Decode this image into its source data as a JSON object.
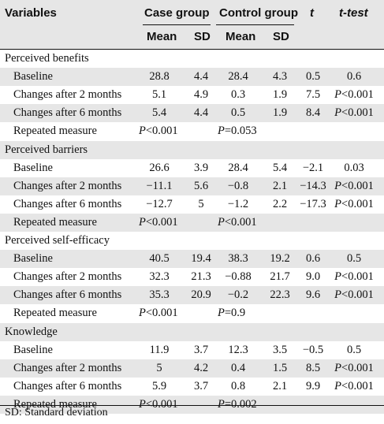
{
  "header": {
    "variables": "Variables",
    "case_group": "Case group",
    "control_group": "Control group",
    "t": "t",
    "ttest": "t-test",
    "mean": "Mean",
    "sd": "SD"
  },
  "rows": [
    {
      "label": "Perceived benefits",
      "type": "section"
    },
    {
      "label": "Baseline",
      "type": "data",
      "case_mean": "28.8",
      "case_sd": "4.4",
      "ctrl_mean": "28.4",
      "ctrl_sd": "4.3",
      "t": "0.5",
      "ttest": "0.6"
    },
    {
      "label": "Changes after 2 months",
      "type": "data",
      "case_mean": "5.1",
      "case_sd": "4.9",
      "ctrl_mean": "0.3",
      "ctrl_sd": "1.9",
      "t": "7.5",
      "ttest": "P<0.001"
    },
    {
      "label": "Changes after 6 months",
      "type": "data",
      "case_mean": "5.4",
      "case_sd": "4.4",
      "ctrl_mean": "0.5",
      "ctrl_sd": "1.9",
      "t": "8.4",
      "ttest": "P<0.001"
    },
    {
      "label": "Repeated measure",
      "type": "rm",
      "case_p": "P<0.001",
      "ctrl_p": "P=0.053"
    },
    {
      "label": "Perceived barriers",
      "type": "section"
    },
    {
      "label": "Baseline",
      "type": "data",
      "case_mean": "26.6",
      "case_sd": "3.9",
      "ctrl_mean": "28.4",
      "ctrl_sd": "5.4",
      "t": "−2.1",
      "ttest": "0.03"
    },
    {
      "label": "Changes after 2 months",
      "type": "data",
      "case_mean": "−11.1",
      "case_sd": "5.6",
      "ctrl_mean": "−0.8",
      "ctrl_sd": "2.1",
      "t": "−14.3",
      "ttest": "P<0.001"
    },
    {
      "label": "Changes after 6 months",
      "type": "data",
      "case_mean": "−12.7",
      "case_sd": "5",
      "ctrl_mean": "−1.2",
      "ctrl_sd": "2.2",
      "t": "−17.3",
      "ttest": "P<0.001"
    },
    {
      "label": "Repeated measure",
      "type": "rm",
      "case_p": "P<0.001",
      "ctrl_p": "P<0.001"
    },
    {
      "label": "Perceived self-efficacy",
      "type": "section"
    },
    {
      "label": "Baseline",
      "type": "data",
      "case_mean": "40.5",
      "case_sd": "19.4",
      "ctrl_mean": "38.3",
      "ctrl_sd": "19.2",
      "t": "0.6",
      "ttest": "0.5"
    },
    {
      "label": "Changes after 2 months",
      "type": "data",
      "case_mean": "32.3",
      "case_sd": "21.3",
      "ctrl_mean": "−0.88",
      "ctrl_sd": "21.7",
      "t": "9.0",
      "ttest": "P<0.001"
    },
    {
      "label": "Changes after 6 months",
      "type": "data",
      "case_mean": "35.3",
      "case_sd": "20.9",
      "ctrl_mean": "−0.2",
      "ctrl_sd": "22.3",
      "t": "9.6",
      "ttest": "P<0.001"
    },
    {
      "label": "Repeated measure",
      "type": "rm",
      "case_p": "P<0.001",
      "ctrl_p": "P=0.9"
    },
    {
      "label": "Knowledge",
      "type": "section"
    },
    {
      "label": "Baseline",
      "type": "data",
      "case_mean": "11.9",
      "case_sd": "3.7",
      "ctrl_mean": "12.3",
      "ctrl_sd": "3.5",
      "t": "−0.5",
      "ttest": "0.5"
    },
    {
      "label": "Changes after 2 months",
      "type": "data",
      "case_mean": "5",
      "case_sd": "4.2",
      "ctrl_mean": "0.4",
      "ctrl_sd": "1.5",
      "t": "8.5",
      "ttest": "P<0.001"
    },
    {
      "label": "Changes after 6 months",
      "type": "data",
      "case_mean": "5.9",
      "case_sd": "3.7",
      "ctrl_mean": "0.8",
      "ctrl_sd": "2.1",
      "t": "9.9",
      "ttest": "P<0.001"
    },
    {
      "label": "Repeated measure",
      "type": "rm",
      "case_p": "P<0.001",
      "ctrl_p": "P=0.002"
    }
  ],
  "footnote": "SD: Standard deviation",
  "colors": {
    "header_bg": "#e6e6e6",
    "stripe_bg": "#e6e6e6",
    "rule": "#111111"
  }
}
